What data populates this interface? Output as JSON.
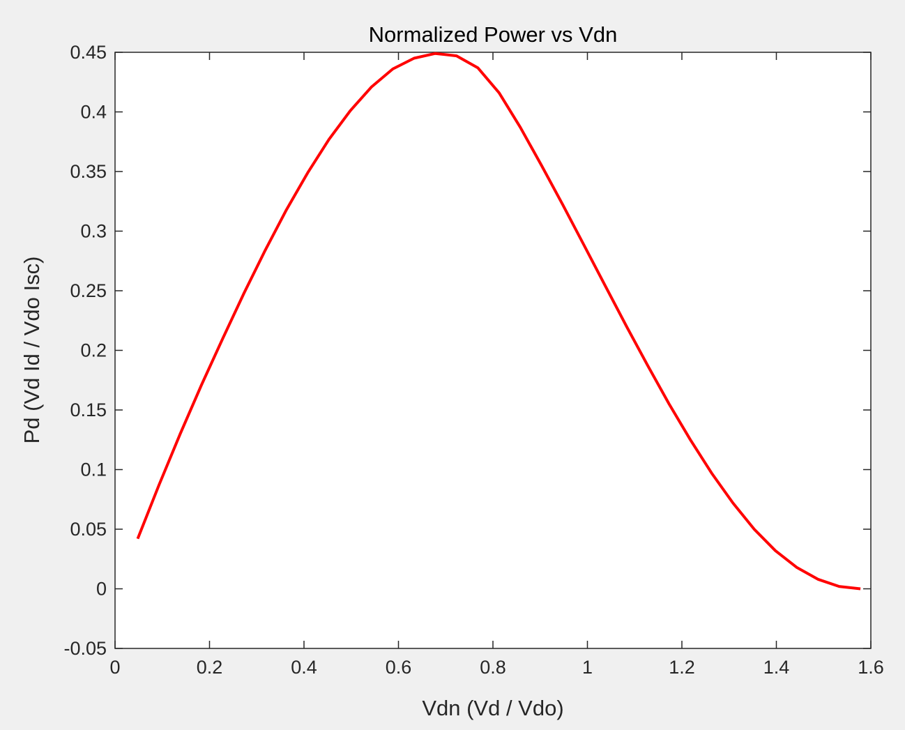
{
  "chart_data": {
    "type": "line",
    "title": "Normalized Power vs Vdn",
    "xlabel": "Vdn (Vd / Vdo)",
    "ylabel": "Pd (Vd Id / Vdo Isc)",
    "xlim": [
      0,
      1.6
    ],
    "ylim": [
      -0.05,
      0.45
    ],
    "xticks": [
      "0",
      "0.2",
      "0.4",
      "0.6",
      "0.8",
      "1",
      "1.2",
      "1.4",
      "1.6"
    ],
    "yticks": [
      "-0.05",
      "0",
      "0.05",
      "0.1",
      "0.15",
      "0.2",
      "0.25",
      "0.3",
      "0.35",
      "0.4",
      "0.45"
    ],
    "grid": false,
    "series": [
      {
        "color": "#ff0000",
        "x": [
          0.048,
          0.093,
          0.138,
          0.183,
          0.228,
          0.273,
          0.318,
          0.363,
          0.408,
          0.453,
          0.498,
          0.543,
          0.588,
          0.633,
          0.678,
          0.723,
          0.768,
          0.813,
          0.858,
          0.903,
          0.948,
          0.993,
          1.038,
          1.083,
          1.128,
          1.173,
          1.218,
          1.263,
          1.308,
          1.353,
          1.398,
          1.443,
          1.488,
          1.533,
          1.578
        ],
        "y": [
          0.042,
          0.087,
          0.13,
          0.171,
          0.21,
          0.248,
          0.284,
          0.318,
          0.349,
          0.377,
          0.401,
          0.421,
          0.436,
          0.445,
          0.449,
          0.447,
          0.437,
          0.416,
          0.387,
          0.355,
          0.322,
          0.288,
          0.254,
          0.22,
          0.187,
          0.155,
          0.125,
          0.097,
          0.072,
          0.05,
          0.032,
          0.018,
          0.008,
          0.002,
          0.0
        ]
      }
    ]
  }
}
